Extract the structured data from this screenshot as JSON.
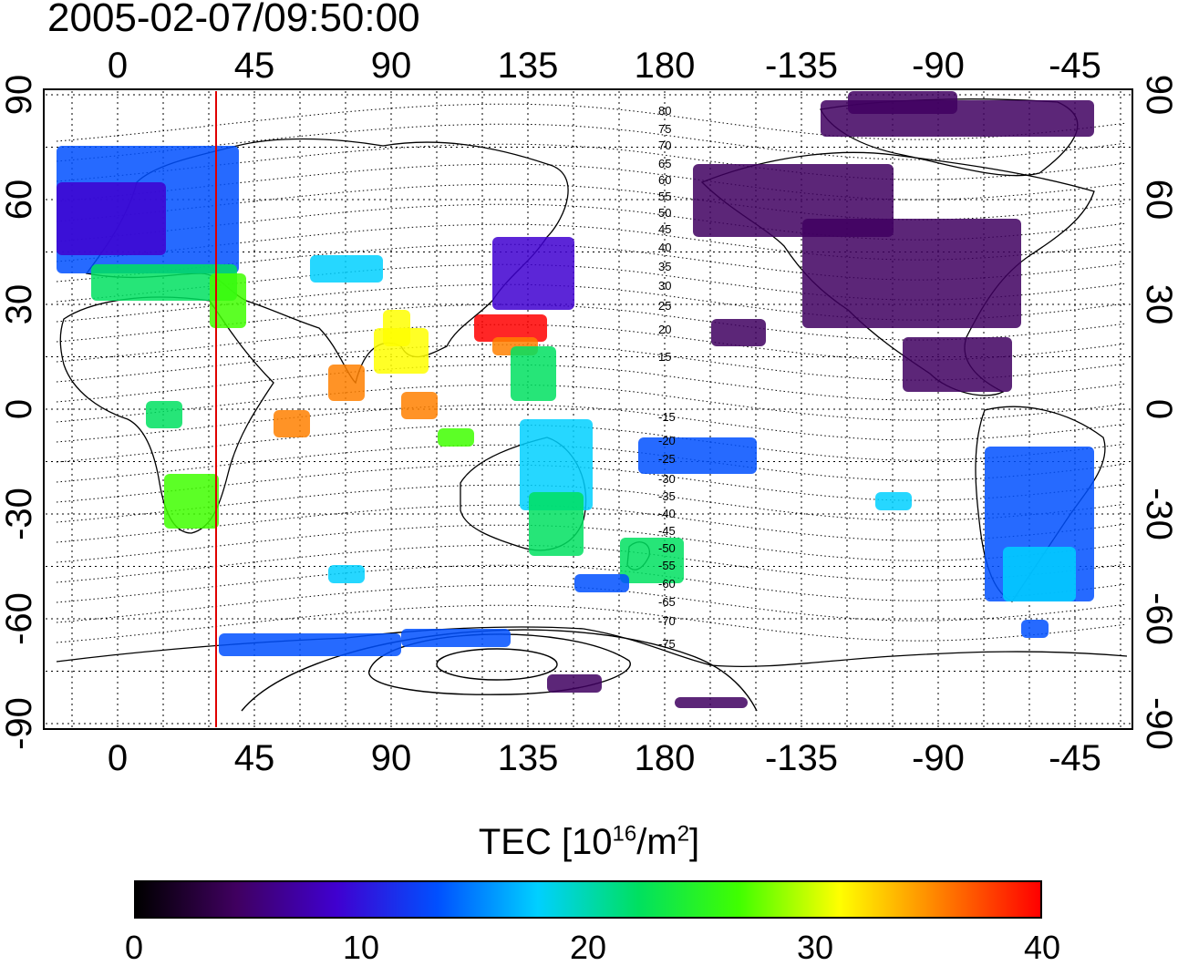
{
  "title": "2005-02-07/09:50:00",
  "map": {
    "lon_ticks": [
      "0",
      "45",
      "90",
      "135",
      "180",
      "-135",
      "-90",
      "-45"
    ],
    "lat_ticks": [
      "90",
      "60",
      "30",
      "0",
      "-30",
      "-60",
      "-90"
    ],
    "lon_range": [
      -24,
      336
    ],
    "lat_range": [
      -92,
      92
    ],
    "red_meridian_lon": 32,
    "contour_labels": [
      "80",
      "75",
      "70",
      "65",
      "60",
      "55",
      "50",
      "45",
      "40",
      "35",
      "30",
      "25",
      "20",
      "15",
      "-15",
      "-20",
      "-25",
      "-30",
      "-35",
      "-40",
      "-45",
      "-50",
      "-55",
      "-60",
      "-65",
      "-70",
      "-75"
    ]
  },
  "colorbar": {
    "title_prefix": "TEC  [10",
    "title_sup1": "16",
    "title_mid": "/m",
    "title_sup2": "2",
    "title_suffix": "]",
    "min": 0,
    "max": 40,
    "ticks": [
      "0",
      "10",
      "20",
      "30",
      "40"
    ],
    "colors": [
      "#000000",
      "#400060",
      "#4000d0",
      "#0050ff",
      "#00d0ff",
      "#00e060",
      "#40ff00",
      "#ffff00",
      "#ff8000",
      "#ff0000"
    ]
  }
}
